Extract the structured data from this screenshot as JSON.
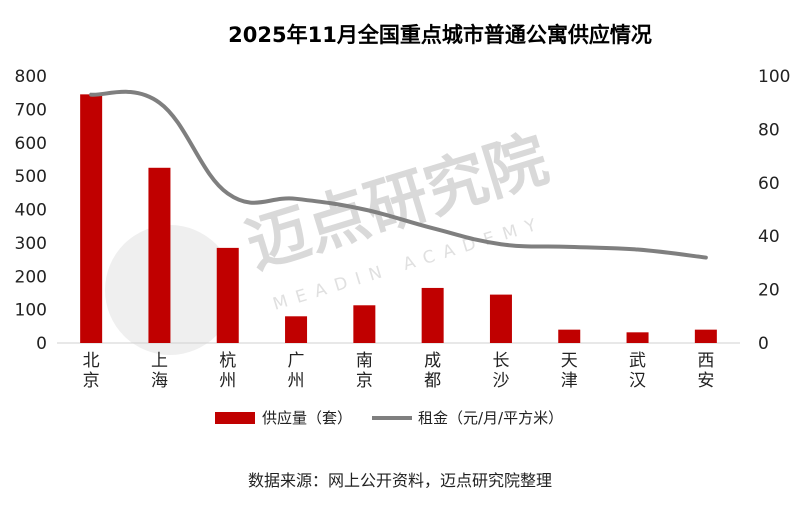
{
  "chart_data": {
    "type": "bar",
    "title": "2025年11月全国重点城市普通公寓供应情况",
    "categories": [
      "北京",
      "上海",
      "杭州",
      "广州",
      "南京",
      "成都",
      "长沙",
      "天津",
      "武汉",
      "西安"
    ],
    "series": [
      {
        "name": "供应量（套）",
        "type": "bar",
        "axis": "left",
        "color": "#c00000",
        "values": [
          745,
          525,
          285,
          80,
          113,
          165,
          145,
          40,
          32,
          40
        ]
      },
      {
        "name": "租金（元/月/平方米）",
        "type": "line",
        "axis": "right",
        "color": "#7f7f7f",
        "values": [
          93,
          90,
          56,
          54,
          50,
          43,
          37,
          36,
          35,
          32
        ]
      }
    ],
    "y_left": {
      "min": 0,
      "max": 800,
      "ticks": [
        0,
        100,
        200,
        300,
        400,
        500,
        600,
        700,
        800
      ]
    },
    "y_right": {
      "min": 0,
      "max": 100,
      "ticks": [
        0,
        20,
        40,
        60,
        80,
        100
      ]
    },
    "legend_position": "bottom",
    "grid": false
  },
  "watermark": {
    "text": "迈点研究院",
    "subtext": "MEADIN ACADEMY"
  },
  "source_note": "数据来源：网上公开资料，迈点研究院整理"
}
